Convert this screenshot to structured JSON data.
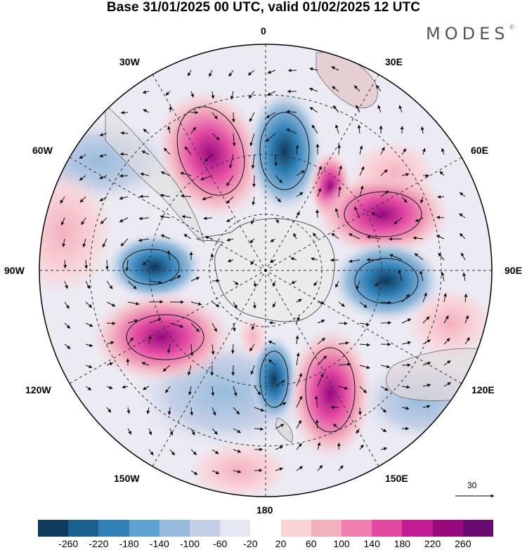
{
  "title": "Base 31/01/2025 00 UTC, valid 01/02/2025 12 UTC",
  "brand": "MODES",
  "brand_mark": "©",
  "longitude_labels": {
    "top": "0",
    "top_right": "30E",
    "right_upper": "60E",
    "right": "90E",
    "right_lower": "120E",
    "bottom_right": "150E",
    "bottom": "180",
    "bottom_left": "150W",
    "left_lower": "120W",
    "left": "90W",
    "left_upper": "60W",
    "top_left": "30W"
  },
  "reference_vector": {
    "value": "30"
  },
  "colorbar": {
    "colors": [
      "#0e3a5c",
      "#1a5f8e",
      "#3282b8",
      "#5ea3cf",
      "#98bcdb",
      "#c4cfe6",
      "#e4e6f1",
      "#ffffff",
      "#f9d3d8",
      "#f3b1bf",
      "#ee7fae",
      "#e24aa2",
      "#c21d92",
      "#97097e",
      "#680a6f"
    ],
    "ticks": [
      "-260",
      "-220",
      "-180",
      "-140",
      "-100",
      "-60",
      "-20",
      "20",
      "60",
      "100",
      "140",
      "180",
      "220",
      "260"
    ]
  },
  "map": {
    "projection": "south polar stereographic",
    "graticule": "dashed",
    "coastlines": true
  }
}
